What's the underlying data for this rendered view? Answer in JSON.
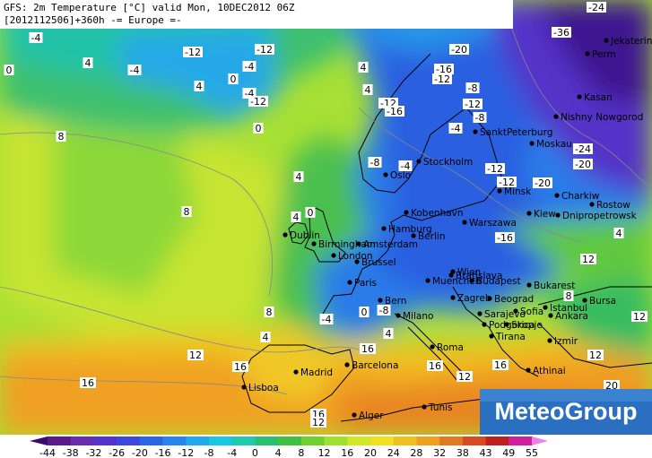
{
  "header": {
    "line1": "GFS: 2m Temperature [°C] valid Mon, 10DEC2012 06Z",
    "line2": "[2012112506]+360h -= Europe =-"
  },
  "cities": [
    "Oslo",
    "Stockholm",
    "SanktPeterburg",
    "Moskau",
    "Nishny Nowgorod",
    "Kasan",
    "Perm",
    "Jekaterinburg",
    "Minsk",
    "Kiew",
    "Charkiw",
    "Rostow",
    "Dnipropetrowsk",
    "Kobenhavn",
    "Hamburg",
    "Berlin",
    "Warszawa",
    "Dublin",
    "Birmingham",
    "Amsterdam",
    "London",
    "Brussel",
    "Paris",
    "Bern",
    "Muenchen",
    "Wien",
    "Bratislava",
    "Budapest",
    "Milano",
    "Zagreb",
    "Beograd",
    "Bukarest",
    "Sarajevo",
    "Sofia",
    "Podgorica",
    "Skopje",
    "Tirana",
    "Istanbul",
    "Bursa",
    "Ankara",
    "Roma",
    "Barcelona",
    "Madrid",
    "Lisboa",
    "Izmir",
    "Athinai",
    "Tunis",
    "Alger"
  ],
  "contour_labels": [
    -4,
    -12,
    -12,
    -4,
    -4,
    4,
    0,
    -4,
    -12,
    0,
    4,
    0,
    8,
    8,
    12,
    16,
    16,
    -36,
    -24,
    -24,
    -20,
    -20,
    -12,
    -16,
    -20,
    -16,
    -12,
    -8,
    -12,
    -8,
    -4,
    -12,
    -16,
    -8,
    -4,
    -12,
    4,
    4,
    4,
    0,
    4,
    8,
    4,
    -4,
    0,
    -8,
    4,
    16,
    16,
    12,
    16,
    12,
    8,
    12,
    12,
    20,
    16,
    12,
    4
  ],
  "legend": {
    "labels": [
      -44,
      -38,
      -32,
      -26,
      -20,
      -16,
      -12,
      -8,
      -4,
      0,
      4,
      8,
      12,
      16,
      20,
      24,
      28,
      32,
      38,
      43,
      49,
      55
    ],
    "colors": [
      "#3c0a6e",
      "#5a1a8c",
      "#6a2bb0",
      "#5533cc",
      "#3c48dc",
      "#2c64e6",
      "#2a84f0",
      "#20a8f0",
      "#18c8e0",
      "#20c8b0",
      "#28c070",
      "#40c040",
      "#70d030",
      "#a0e030",
      "#d0e828",
      "#f0e020",
      "#f0c020",
      "#f0a020",
      "#e07a20",
      "#d84a20",
      "#c02020",
      "#d020a0",
      "#f080e0"
    ]
  },
  "logo": "MeteoGroup"
}
